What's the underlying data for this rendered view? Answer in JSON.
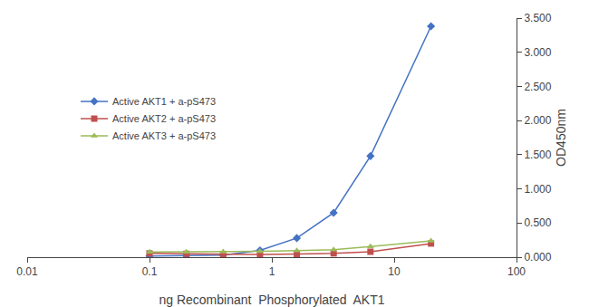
{
  "chart_data": {
    "type": "line",
    "xlabel": "ng Recombinant  Phosphorylated  AKT1",
    "ylabel": "OD450nm",
    "x": [
      0.1,
      0.2,
      0.4,
      0.8,
      1.6,
      3.2,
      6.4,
      20
    ],
    "series": [
      {
        "name": "Active AKT1 + a-pS473",
        "color": "#4472C4",
        "marker": "diamond",
        "values": [
          0.015,
          0.02,
          0.03,
          0.1,
          0.28,
          0.65,
          1.48,
          3.38
        ]
      },
      {
        "name": "Active AKT2 + a-pS473",
        "color": "#C0504D",
        "marker": "square",
        "values": [
          0.055,
          0.05,
          0.045,
          0.04,
          0.045,
          0.055,
          0.08,
          0.2
        ]
      },
      {
        "name": "Active AKT3 + a-pS473",
        "color": "#9BBB59",
        "marker": "triangle",
        "values": [
          0.075,
          0.075,
          0.08,
          0.085,
          0.095,
          0.11,
          0.155,
          0.24
        ]
      }
    ],
    "log": "x",
    "xlim": [
      0.01,
      100
    ],
    "xticks": [
      0.01,
      0.1,
      1,
      10,
      100
    ],
    "ylim": [
      0.0,
      3.5
    ],
    "yticks": [
      {
        "value": 0.0,
        "label": "0.000"
      },
      {
        "value": 0.5,
        "label": "0.500"
      },
      {
        "value": 1.0,
        "label": "1.000"
      },
      {
        "value": 1.5,
        "label": "1.500"
      },
      {
        "value": 2.0,
        "label": "2.000"
      },
      {
        "value": 2.5,
        "label": "2.500"
      },
      {
        "value": 3.0,
        "label": "3.000"
      },
      {
        "value": 3.5,
        "label": "3.500"
      }
    ],
    "grid": false,
    "legend": "left"
  }
}
